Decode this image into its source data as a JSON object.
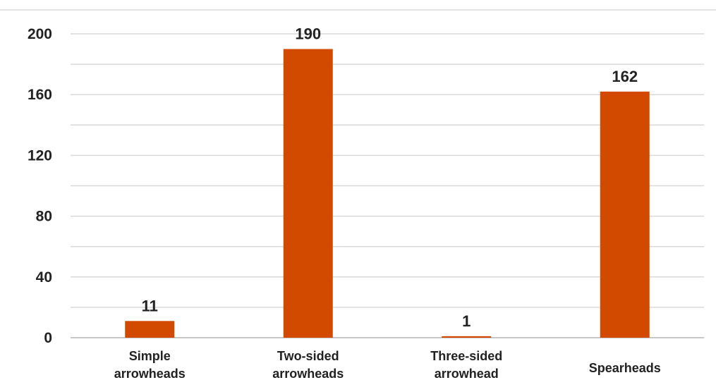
{
  "chart_data": {
    "type": "bar",
    "categories": [
      [
        "Simple",
        "arrowheads"
      ],
      [
        "Two-sided",
        "arrowheads"
      ],
      [
        "Three-sided",
        "arrowhead"
      ],
      [
        "Spearheads"
      ]
    ],
    "values": [
      11,
      190,
      1,
      162
    ],
    "data_labels": [
      "11",
      "190",
      "1",
      "162"
    ],
    "yticks": [
      0,
      40,
      80,
      120,
      160,
      200
    ],
    "ylim": [
      0,
      200
    ],
    "grid": true,
    "gridline_step": 20,
    "bar_color": "#d24a00",
    "grid_color": "#d9d9d9"
  }
}
